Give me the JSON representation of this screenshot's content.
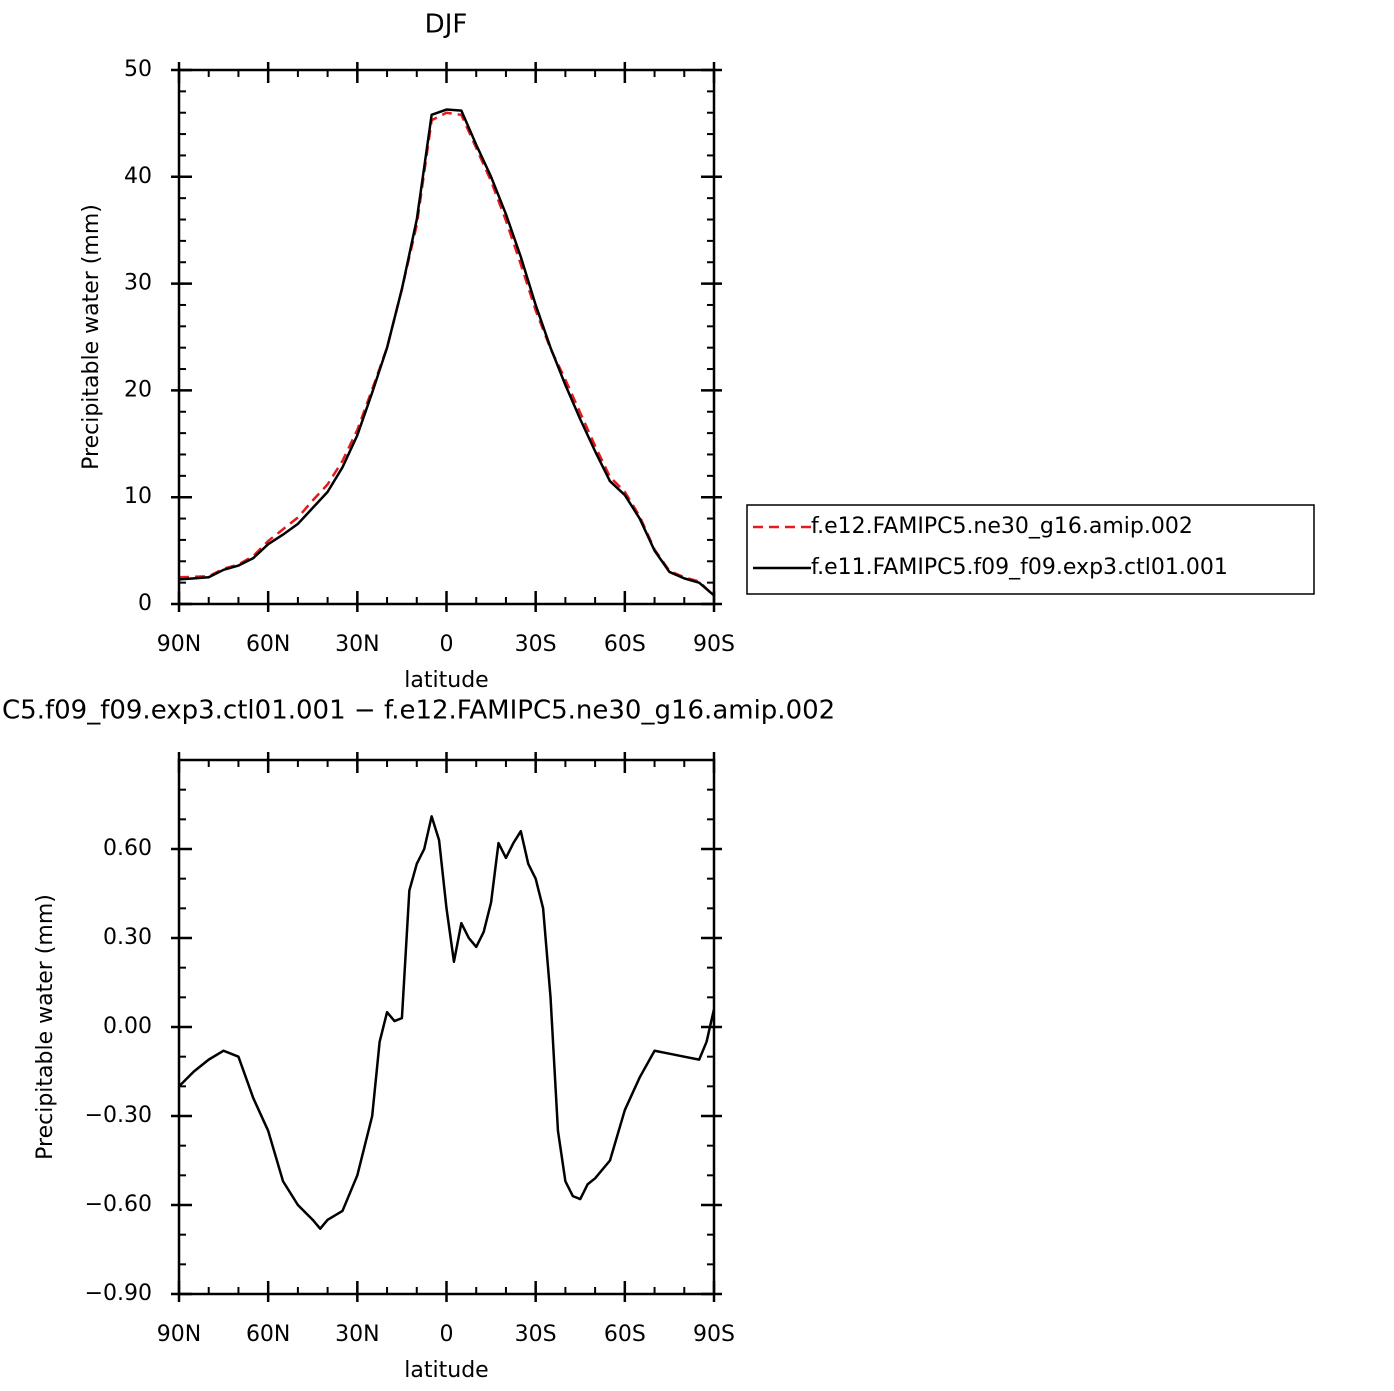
{
  "chart_data": [
    {
      "type": "line",
      "title": "DJF",
      "xlabel": "latitude",
      "ylabel": "Precipitable water (mm)",
      "x": [
        90,
        85,
        80,
        75,
        70,
        65,
        60,
        55,
        50,
        45,
        40,
        35,
        30,
        25,
        20,
        15,
        10,
        5,
        0,
        -5,
        -10,
        -15,
        -20,
        -25,
        -30,
        -35,
        -40,
        -45,
        -50,
        -55,
        -60,
        -65,
        -70,
        -75,
        -80,
        -85,
        -90
      ],
      "series": [
        {
          "name": "f.e12.FAMIPC5.ne30_g16.amip.002",
          "color": "#e41a1c",
          "linestyle": "dashed",
          "values": [
            2.5,
            2.55,
            2.6,
            3.3,
            3.7,
            4.5,
            5.9,
            7.0,
            8.1,
            9.7,
            11.2,
            13.4,
            16.3,
            20.1,
            24.0,
            29.5,
            35.5,
            45.3,
            46.0,
            45.8,
            42.7,
            39.6,
            35.9,
            31.8,
            27.5,
            23.9,
            21.0,
            17.9,
            14.8,
            11.9,
            10.5,
            8.2,
            5.1,
            3.1,
            2.5,
            2.1,
            0.75
          ]
        },
        {
          "name": "f.e11.FAMIPC5.f09_f09.exp3.ctl01.001",
          "color": "#000000",
          "linestyle": "solid",
          "values": [
            2.3,
            2.4,
            2.5,
            3.2,
            3.6,
            4.3,
            5.6,
            6.5,
            7.5,
            9.0,
            10.5,
            12.8,
            15.8,
            19.8,
            24.0,
            29.5,
            36.0,
            45.8,
            46.3,
            46.2,
            43.0,
            40.0,
            36.5,
            32.5,
            28.0,
            24.0,
            20.5,
            17.3,
            14.3,
            11.5,
            10.2,
            8.0,
            5.0,
            3.0,
            2.4,
            2.0,
            0.8
          ]
        }
      ],
      "xlim": [
        90,
        -90
      ],
      "xticks": [
        {
          "value": 90,
          "label": "90N"
        },
        {
          "value": 60,
          "label": "60N"
        },
        {
          "value": 30,
          "label": "30N"
        },
        0,
        {
          "value": -30,
          "label": "30S"
        },
        {
          "value": -60,
          "label": "60S"
        },
        {
          "value": -90,
          "label": "90S"
        }
      ],
      "ylim": [
        0,
        50
      ],
      "yticks": [
        0,
        10,
        20,
        30,
        40,
        50
      ],
      "legend": "right"
    },
    {
      "type": "line",
      "title": "C5.f09_f09.exp3.ctl01.001 − f.e12.FAMIPC5.ne30_g16.amip.002",
      "xlabel": "latitude",
      "ylabel": "Precipitable water (mm)",
      "x": [
        90,
        85,
        80,
        75,
        70,
        65,
        60,
        55,
        50,
        45,
        42.5,
        40,
        35,
        30,
        25,
        22.5,
        20,
        17.5,
        15,
        12.5,
        10,
        7.5,
        5,
        2.5,
        0,
        -2.5,
        -5,
        -7.5,
        -10,
        -12.5,
        -15,
        -17.5,
        -20,
        -22.5,
        -25,
        -27.5,
        -30,
        -32.5,
        -35,
        -37.5,
        -40,
        -42.5,
        -45,
        -47.5,
        -50,
        -55,
        -60,
        -65,
        -70,
        -75,
        -80,
        -85,
        -87.5,
        -90
      ],
      "values": [
        -0.2,
        -0.15,
        -0.11,
        -0.08,
        -0.1,
        -0.24,
        -0.35,
        -0.52,
        -0.6,
        -0.65,
        -0.68,
        -0.65,
        -0.62,
        -0.5,
        -0.3,
        -0.05,
        0.05,
        0.02,
        0.03,
        0.46,
        0.55,
        0.6,
        0.71,
        0.63,
        0.4,
        0.22,
        0.35,
        0.3,
        0.27,
        0.32,
        0.42,
        0.62,
        0.57,
        0.62,
        0.66,
        0.55,
        0.5,
        0.4,
        0.1,
        -0.35,
        -0.52,
        -0.57,
        -0.58,
        -0.53,
        -0.51,
        -0.45,
        -0.28,
        -0.17,
        -0.08,
        -0.09,
        -0.1,
        -0.11,
        -0.05,
        0.06
      ],
      "color": "#000000",
      "xlim": [
        90,
        -90
      ],
      "xticks": [
        {
          "value": 90,
          "label": "90N"
        },
        {
          "value": 60,
          "label": "60N"
        },
        {
          "value": 30,
          "label": "30N"
        },
        0,
        {
          "value": -30,
          "label": "30S"
        },
        {
          "value": -60,
          "label": "60S"
        },
        {
          "value": -90,
          "label": "90S"
        }
      ],
      "ylim": [
        -0.9,
        0.9
      ],
      "yticks": [
        {
          "value": -0.9,
          "label": "−0.90"
        },
        {
          "value": -0.6,
          "label": "−0.60"
        },
        {
          "value": -0.3,
          "label": "−0.30"
        },
        {
          "value": 0,
          "label": "0.00"
        },
        {
          "value": 0.3,
          "label": "0.30"
        },
        {
          "value": 0.6,
          "label": "0.60"
        }
      ]
    }
  ]
}
